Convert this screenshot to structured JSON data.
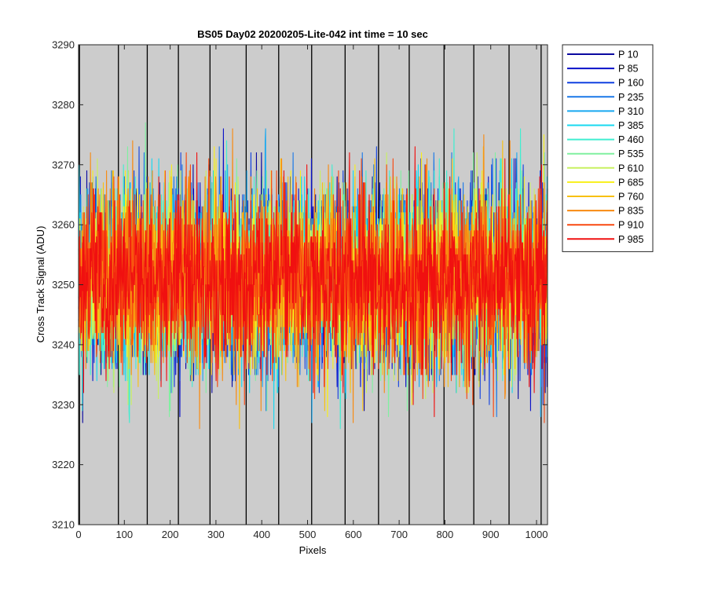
{
  "chart_data": {
    "type": "line",
    "title": "BS05 Day02 20200205-Lite-042 int time = 10 sec",
    "xlabel": "Pixels",
    "ylabel": "Cross Track Signal (ADU)",
    "xlim": [
      0,
      1024
    ],
    "ylim": [
      3210,
      3290
    ],
    "xticks": [
      0,
      100,
      200,
      300,
      400,
      500,
      600,
      700,
      800,
      900,
      1000
    ],
    "yticks": [
      3210,
      3220,
      3230,
      3240,
      3250,
      3260,
      3270,
      3280,
      3290
    ],
    "xtick_labels": [
      "0",
      "100",
      "200",
      "300",
      "400",
      "500",
      "600",
      "700",
      "800",
      "900",
      "1000"
    ],
    "ytick_labels": [
      "3210",
      "3220",
      "3230",
      "3240",
      "3250",
      "3260",
      "3270",
      "3280",
      "3290"
    ],
    "plot_background": "#cccccc",
    "vertical_lines_x": [
      2,
      87,
      150,
      218,
      287,
      366,
      437,
      509,
      582,
      655,
      722,
      798,
      863,
      940,
      1010
    ],
    "vertical_line_color": "#000000",
    "legend_location": "outside-top-right",
    "noise": {
      "mean": 3251,
      "typical_min": 3226,
      "typical_max": 3278,
      "points_per_series": 1024,
      "seed": 42
    },
    "series": [
      {
        "name": "P 10",
        "color": "#0a08a0"
      },
      {
        "name": "P 85",
        "color": "#0a10c8"
      },
      {
        "name": "P 160",
        "color": "#1040e0"
      },
      {
        "name": "P 235",
        "color": "#1a78e8"
      },
      {
        "name": "P 310",
        "color": "#18a8f0"
      },
      {
        "name": "P 385",
        "color": "#18d8f0"
      },
      {
        "name": "P 460",
        "color": "#40eed0"
      },
      {
        "name": "P 535",
        "color": "#80f0a0"
      },
      {
        "name": "P 610",
        "color": "#c8f060"
      },
      {
        "name": "P 685",
        "color": "#f8f018"
      },
      {
        "name": "P 760",
        "color": "#f8c010"
      },
      {
        "name": "P 835",
        "color": "#f88a10"
      },
      {
        "name": "P 910",
        "color": "#f84810"
      },
      {
        "name": "P 985",
        "color": "#f01010"
      }
    ]
  }
}
